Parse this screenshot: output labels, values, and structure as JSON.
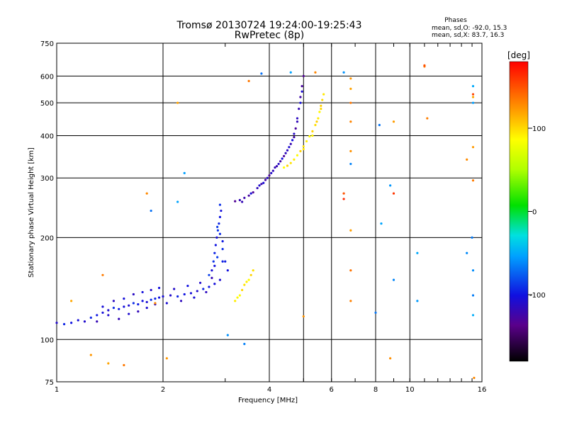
{
  "chart_data": {
    "type": "scatter",
    "title": "Tromsø 20130724 19:24:00-19:25:43",
    "subtitle": "RwPretec (8p)",
    "xlabel": "Frequency [MHz]",
    "ylabel": "Stationary phase Virtual Height [km]",
    "x_scale": "log",
    "y_scale": "log",
    "xlim": [
      1,
      16
    ],
    "ylim": [
      75,
      750
    ],
    "x_ticks": [
      1,
      2,
      4,
      6,
      8,
      10,
      16
    ],
    "y_ticks": [
      75,
      100,
      200,
      300,
      400,
      500,
      600,
      750
    ],
    "grid": true,
    "phase_header": "Phases",
    "phase_stats": [
      "mean, sd,O: -92.0, 15.3",
      "mean, sd,X:  83.7, 16.3"
    ],
    "colorbar": {
      "label": "[deg]",
      "range": [
        -180,
        180
      ],
      "ticks": [
        100,
        0,
        -100
      ]
    },
    "traces": [
      {
        "kind": "O-low",
        "color_value": -100,
        "points": [
          [
            1.0,
            112
          ],
          [
            1.05,
            111
          ],
          [
            1.1,
            112
          ],
          [
            1.15,
            114
          ],
          [
            1.2,
            113
          ],
          [
            1.25,
            116
          ],
          [
            1.3,
            118
          ],
          [
            1.35,
            120
          ],
          [
            1.4,
            122
          ],
          [
            1.45,
            124
          ],
          [
            1.5,
            123
          ],
          [
            1.55,
            125
          ],
          [
            1.6,
            126
          ],
          [
            1.65,
            128
          ],
          [
            1.7,
            127
          ],
          [
            1.75,
            130
          ],
          [
            1.8,
            129
          ],
          [
            1.85,
            131
          ],
          [
            1.9,
            132
          ],
          [
            1.95,
            133
          ],
          [
            2.0,
            134
          ],
          [
            2.1,
            135
          ],
          [
            2.2,
            134
          ],
          [
            2.3,
            136
          ],
          [
            2.4,
            137
          ],
          [
            2.5,
            139
          ],
          [
            2.6,
            141
          ],
          [
            2.7,
            143
          ],
          [
            2.8,
            146
          ],
          [
            2.9,
            150
          ]
        ]
      },
      {
        "kind": "O-low-scatter",
        "color_value": -110,
        "points": [
          [
            1.3,
            113
          ],
          [
            1.35,
            125
          ],
          [
            1.4,
            118
          ],
          [
            1.45,
            130
          ],
          [
            1.5,
            115
          ],
          [
            1.55,
            132
          ],
          [
            1.6,
            119
          ],
          [
            1.65,
            136
          ],
          [
            1.7,
            121
          ],
          [
            1.75,
            138
          ],
          [
            1.8,
            124
          ],
          [
            1.85,
            140
          ],
          [
            1.9,
            127
          ],
          [
            1.95,
            142
          ],
          [
            2.05,
            128
          ],
          [
            2.15,
            141
          ],
          [
            2.25,
            130
          ],
          [
            2.35,
            144
          ],
          [
            2.45,
            133
          ],
          [
            2.55,
            147
          ],
          [
            2.65,
            138
          ],
          [
            2.75,
            152
          ]
        ]
      },
      {
        "kind": "O-cusp",
        "color_value": -95,
        "points": [
          [
            2.75,
            160
          ],
          [
            2.78,
            170
          ],
          [
            2.8,
            180
          ],
          [
            2.82,
            190
          ],
          [
            2.84,
            200
          ],
          [
            2.86,
            210
          ],
          [
            2.88,
            220
          ],
          [
            2.9,
            230
          ],
          [
            2.92,
            240
          ],
          [
            2.85,
            215
          ],
          [
            2.9,
            205
          ],
          [
            2.95,
            195
          ],
          [
            2.8,
            165
          ],
          [
            2.85,
            175
          ],
          [
            2.95,
            185
          ],
          [
            3.0,
            170
          ],
          [
            3.05,
            160
          ],
          [
            2.7,
            155
          ],
          [
            2.9,
            250
          ],
          [
            2.95,
            170
          ]
        ]
      },
      {
        "kind": "O-F2",
        "color_value": -125,
        "points": [
          [
            3.2,
            256
          ],
          [
            3.3,
            258
          ],
          [
            3.4,
            262
          ],
          [
            3.5,
            266
          ],
          [
            3.6,
            272
          ],
          [
            3.7,
            280
          ],
          [
            3.8,
            288
          ],
          [
            3.9,
            296
          ],
          [
            4.0,
            305
          ],
          [
            4.1,
            315
          ],
          [
            4.2,
            325
          ],
          [
            4.3,
            336
          ],
          [
            4.4,
            348
          ],
          [
            4.5,
            362
          ],
          [
            4.6,
            378
          ],
          [
            4.7,
            396
          ],
          [
            4.75,
            420
          ],
          [
            4.8,
            450
          ],
          [
            4.85,
            480
          ],
          [
            4.9,
            520
          ],
          [
            4.95,
            560
          ],
          [
            5.0,
            600
          ]
        ]
      },
      {
        "kind": "O-F2-scatter",
        "color_value": -110,
        "points": [
          [
            3.35,
            255
          ],
          [
            3.55,
            270
          ],
          [
            3.75,
            285
          ],
          [
            3.95,
            300
          ],
          [
            4.15,
            322
          ],
          [
            4.35,
            342
          ],
          [
            4.55,
            370
          ],
          [
            4.7,
            405
          ],
          [
            4.8,
            440
          ],
          [
            4.9,
            500
          ],
          [
            4.95,
            540
          ],
          [
            4.25,
            330
          ],
          [
            4.45,
            355
          ],
          [
            4.65,
            388
          ],
          [
            3.85,
            290
          ],
          [
            4.05,
            310
          ]
        ]
      },
      {
        "kind": "X-E",
        "color_value": 95,
        "points": [
          [
            3.3,
            135
          ],
          [
            3.35,
            140
          ],
          [
            3.4,
            145
          ],
          [
            3.45,
            148
          ],
          [
            3.5,
            150
          ],
          [
            3.55,
            155
          ],
          [
            3.6,
            160
          ],
          [
            3.2,
            130
          ],
          [
            3.25,
            133
          ]
        ]
      },
      {
        "kind": "X-F2",
        "color_value": 95,
        "points": [
          [
            4.4,
            322
          ],
          [
            4.5,
            326
          ],
          [
            4.6,
            332
          ],
          [
            4.7,
            340
          ],
          [
            4.8,
            350
          ],
          [
            4.9,
            360
          ],
          [
            5.0,
            372
          ],
          [
            5.1,
            385
          ],
          [
            5.2,
            398
          ],
          [
            5.3,
            412
          ],
          [
            5.4,
            430
          ],
          [
            5.5,
            450
          ],
          [
            5.55,
            470
          ],
          [
            5.6,
            490
          ],
          [
            5.65,
            510
          ],
          [
            5.7,
            530
          ],
          [
            5.3,
            400
          ],
          [
            5.45,
            440
          ],
          [
            5.6,
            480
          ],
          [
            5.0,
            365
          ]
        ]
      },
      {
        "kind": "noise-positive",
        "color_value": 130,
        "points": [
          [
            1.1,
            130
          ],
          [
            1.35,
            155
          ],
          [
            1.8,
            270
          ],
          [
            2.05,
            88
          ],
          [
            2.2,
            500
          ],
          [
            3.5,
            580
          ],
          [
            5.4,
            615
          ],
          [
            6.8,
            590
          ],
          [
            6.8,
            550
          ],
          [
            6.8,
            500
          ],
          [
            6.8,
            440
          ],
          [
            6.8,
            360
          ],
          [
            6.8,
            210
          ],
          [
            6.8,
            160
          ],
          [
            6.8,
            130
          ],
          [
            8.8,
            88
          ],
          [
            9.0,
            440
          ],
          [
            11.0,
            640
          ],
          [
            11.2,
            450
          ],
          [
            14.5,
            340
          ],
          [
            15.1,
            370
          ],
          [
            15.1,
            520
          ],
          [
            15.1,
            295
          ],
          [
            15.2,
            77
          ],
          [
            1.25,
            90
          ],
          [
            1.4,
            85
          ],
          [
            1.55,
            84
          ],
          [
            1.9,
            128
          ],
          [
            5.0,
            117
          ]
        ]
      },
      {
        "kind": "noise-negative",
        "color_value": -60,
        "points": [
          [
            3.8,
            610
          ],
          [
            4.6,
            615
          ],
          [
            6.5,
            615
          ],
          [
            6.8,
            330
          ],
          [
            8.2,
            430
          ],
          [
            8.3,
            220
          ],
          [
            8.8,
            285
          ],
          [
            9.0,
            150
          ],
          [
            8.0,
            120
          ],
          [
            10.5,
            180
          ],
          [
            10.5,
            130
          ],
          [
            14.5,
            180
          ],
          [
            15.0,
            200
          ],
          [
            15.1,
            560
          ],
          [
            15.1,
            500
          ],
          [
            15.1,
            160
          ],
          [
            15.1,
            135
          ],
          [
            15.1,
            118
          ],
          [
            2.3,
            310
          ],
          [
            3.05,
            103
          ],
          [
            3.4,
            97
          ],
          [
            1.85,
            240
          ],
          [
            2.2,
            255
          ]
        ]
      },
      {
        "kind": "noise-red",
        "color_value": 160,
        "points": [
          [
            6.5,
            270
          ],
          [
            6.5,
            260
          ],
          [
            9.0,
            270
          ],
          [
            15.1,
            530
          ],
          [
            11.0,
            645
          ]
        ]
      }
    ]
  }
}
